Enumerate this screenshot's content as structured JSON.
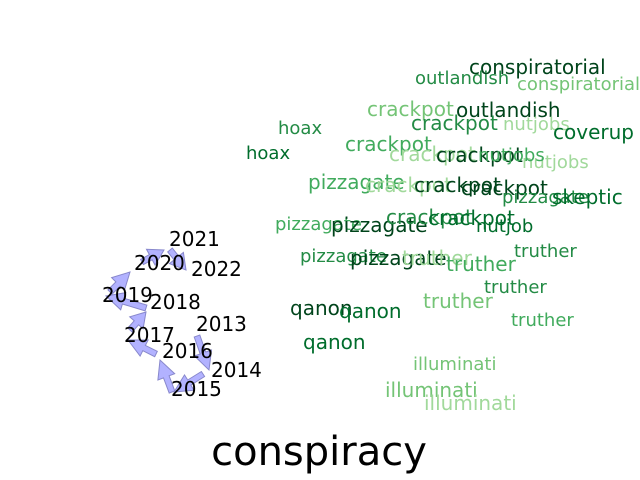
{
  "title": "conspiracy",
  "palette": {
    "darkest": "#00441b",
    "dark": "#006d2c",
    "mid_dark": "#238b45",
    "mid": "#41ab5d",
    "light": "#74c476",
    "lightest": "#a1d99b",
    "arrow_fill": "#aaaaff",
    "arrow_stroke": "#8888cc"
  },
  "years": [
    "2013",
    "2014",
    "2015",
    "2016",
    "2017",
    "2018",
    "2019",
    "2020",
    "2021",
    "2022"
  ],
  "words": [
    {
      "text": "conspiratorial",
      "shade": "darkest"
    },
    {
      "text": "outlandish",
      "shade": "mid_dark"
    },
    {
      "text": "conspiratorial",
      "shade": "light"
    },
    {
      "text": "crackpot",
      "shade": "light"
    },
    {
      "text": "outlandish",
      "shade": "darkest"
    },
    {
      "text": "hoax",
      "shade": "mid_dark"
    },
    {
      "text": "crackpot",
      "shade": "mid_dark"
    },
    {
      "text": "nutjobs",
      "shade": "lightest"
    },
    {
      "text": "coverup",
      "shade": "dark"
    },
    {
      "text": "hoax",
      "shade": "dark"
    },
    {
      "text": "crackpot",
      "shade": "mid"
    },
    {
      "text": "crackpot",
      "shade": "lightest"
    },
    {
      "text": "nutjobs",
      "shade": "lightest"
    },
    {
      "text": "crackpot",
      "shade": "darkest"
    },
    {
      "text": "nutjobs",
      "shade": "mid"
    },
    {
      "text": "pizzagate",
      "shade": "mid"
    },
    {
      "text": "crackpot",
      "shade": "lightest"
    },
    {
      "text": "crackpot",
      "shade": "darkest"
    },
    {
      "text": "crackpot",
      "shade": "darkest"
    },
    {
      "text": "pizzagate",
      "shade": "mid_dark"
    },
    {
      "text": "skeptic",
      "shade": "dark"
    },
    {
      "text": "pizzagate",
      "shade": "mid"
    },
    {
      "text": "pizzagate",
      "shade": "darkest"
    },
    {
      "text": "crackpot",
      "shade": "mid_dark"
    },
    {
      "text": "crackpot",
      "shade": "dark"
    },
    {
      "text": "nutjob",
      "shade": "dark"
    },
    {
      "text": "pizzagate",
      "shade": "mid_dark"
    },
    {
      "text": "pizzagate",
      "shade": "darkest"
    },
    {
      "text": "truther",
      "shade": "lightest"
    },
    {
      "text": "truther",
      "shade": "mid"
    },
    {
      "text": "truther",
      "shade": "mid_dark"
    },
    {
      "text": "truther",
      "shade": "mid_dark"
    },
    {
      "text": "qanon",
      "shade": "darkest"
    },
    {
      "text": "qanon",
      "shade": "dark"
    },
    {
      "text": "truther",
      "shade": "light"
    },
    {
      "text": "truther",
      "shade": "mid"
    },
    {
      "text": "qanon",
      "shade": "dark"
    },
    {
      "text": "illuminati",
      "shade": "light"
    },
    {
      "text": "illuminati",
      "shade": "light"
    },
    {
      "text": "illuminati",
      "shade": "lightest"
    }
  ]
}
